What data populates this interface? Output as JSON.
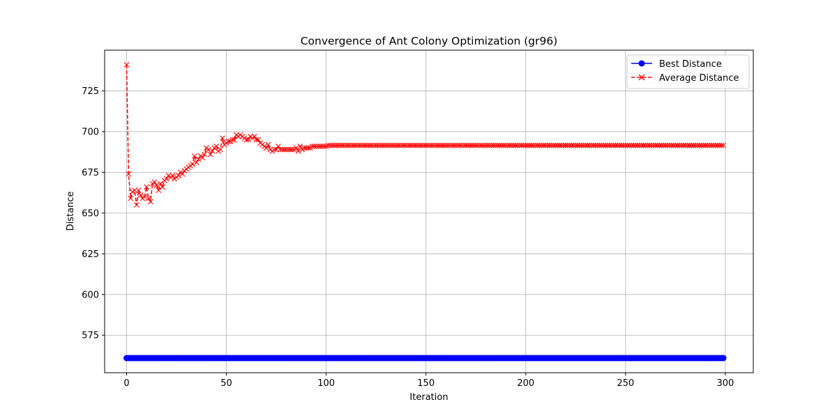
{
  "chart_data": {
    "type": "line",
    "title": "Convergence of Ant Colony Optimization (gr96)",
    "xlabel": "Iteration",
    "ylabel": "Distance",
    "xlim": [
      -11,
      314
    ],
    "ylim": [
      552,
      750
    ],
    "xticks": [
      0,
      50,
      100,
      150,
      200,
      250,
      300
    ],
    "yticks": [
      575,
      600,
      625,
      650,
      675,
      700,
      725
    ],
    "grid": true,
    "legend_position": "top-right",
    "iterations": {
      "start": 0,
      "end": 299
    },
    "series": [
      {
        "name": "Best Distance",
        "color": "#0000ff",
        "line_style": "solid",
        "marker": "circle",
        "values_constant": 561
      },
      {
        "name": "Average Distance",
        "color": "#ff0000",
        "line_style": "dashed",
        "marker": "x",
        "values_initial": [
          741,
          674,
          659,
          663,
          664,
          655,
          664,
          661,
          659,
          660,
          666,
          659,
          657,
          668,
          669,
          667,
          664,
          668,
          666,
          670,
          671,
          673,
          672,
          673,
          671,
          672,
          673,
          675,
          674,
          676,
          677,
          678,
          679,
          680,
          685,
          681,
          683,
          685,
          684,
          686,
          690,
          689,
          686,
          688,
          690,
          691,
          688,
          689,
          696,
          692,
          693,
          694,
          694,
          695,
          695,
          698,
          697,
          698,
          697,
          696,
          695,
          695,
          697,
          696,
          697,
          695,
          695,
          693,
          692,
          691,
          690,
          692,
          689,
          688,
          689,
          689,
          691,
          689,
          689,
          689,
          689,
          689,
          689,
          689,
          689,
          690,
          688,
          691,
          689,
          690,
          690,
          690,
          690,
          691,
          691,
          691,
          691,
          691,
          691,
          691,
          691
        ],
        "values_steady": 691.5
      }
    ]
  }
}
